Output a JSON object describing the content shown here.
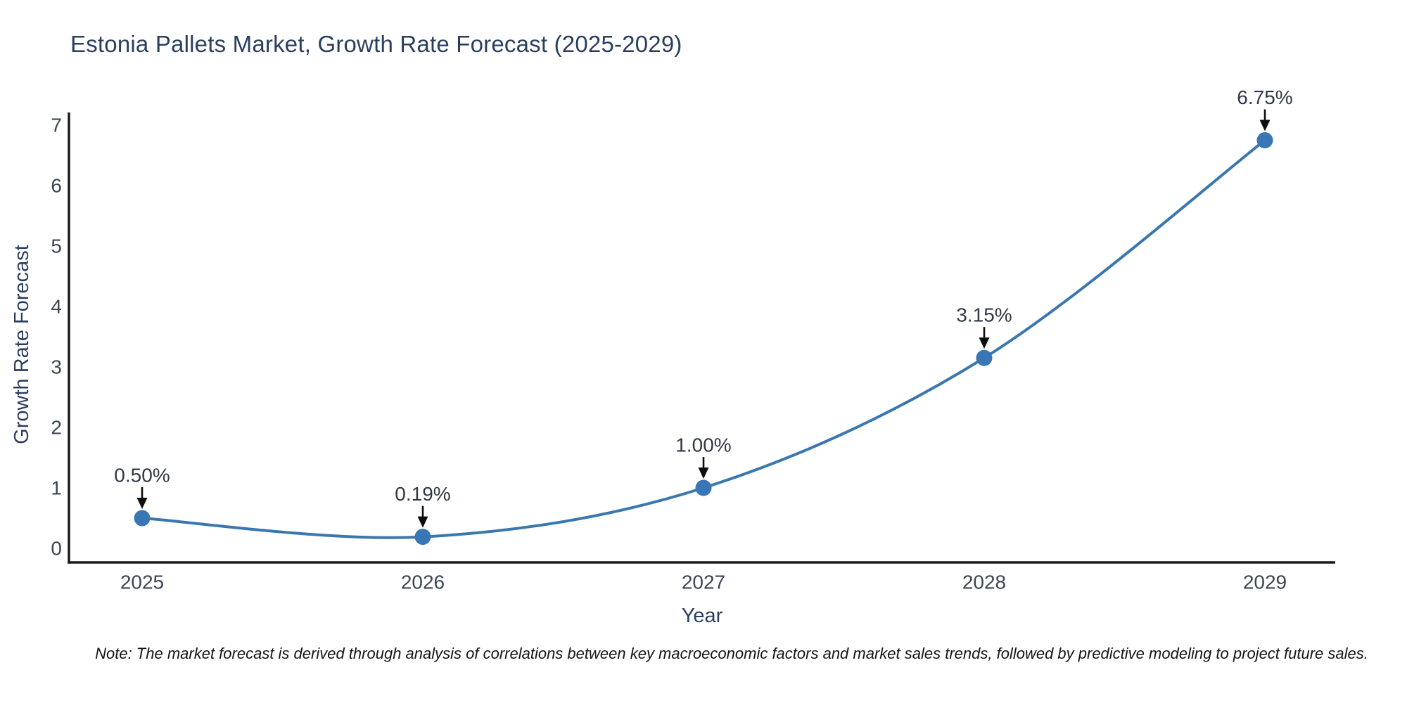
{
  "title": "Estonia Pallets Market, Growth Rate Forecast (2025-2029)",
  "note": "Note: The market forecast is derived through analysis of correlations between key macroeconomic factors and market sales trends, followed by predictive modeling to project future sales.",
  "chart_data": {
    "type": "line",
    "line_shape": "spline",
    "markers": true,
    "x": [
      "2025",
      "2026",
      "2027",
      "2028",
      "2029"
    ],
    "series": [
      {
        "name": "Growth Rate Forecast",
        "values": [
          0.5,
          0.19,
          1.0,
          3.15,
          6.75
        ]
      }
    ],
    "point_labels": [
      "0.50%",
      "0.19%",
      "1.00%",
      "3.15%",
      "6.75%"
    ],
    "title": "Estonia Pallets Market, Growth Rate Forecast (2025-2029)",
    "xlabel": "Year",
    "ylabel": "Growth Rate Forecast",
    "ylim": [
      0,
      7
    ],
    "yticks": [
      0,
      1,
      2,
      3,
      4,
      5,
      6,
      7
    ],
    "grid": false,
    "legend": false,
    "annotation_arrows": true,
    "colors": {
      "line": "#3b77af",
      "marker": "#3876b5",
      "axis_line": "#1a1a1a",
      "title_text": "#2a3f5f",
      "axis_title_text": "#2a3f5f",
      "tick_text": "#3b4653",
      "annotation_text": "#2f3845",
      "arrow": "#0d0d0d",
      "note_text": "#141414",
      "background": "#ffffff"
    }
  }
}
